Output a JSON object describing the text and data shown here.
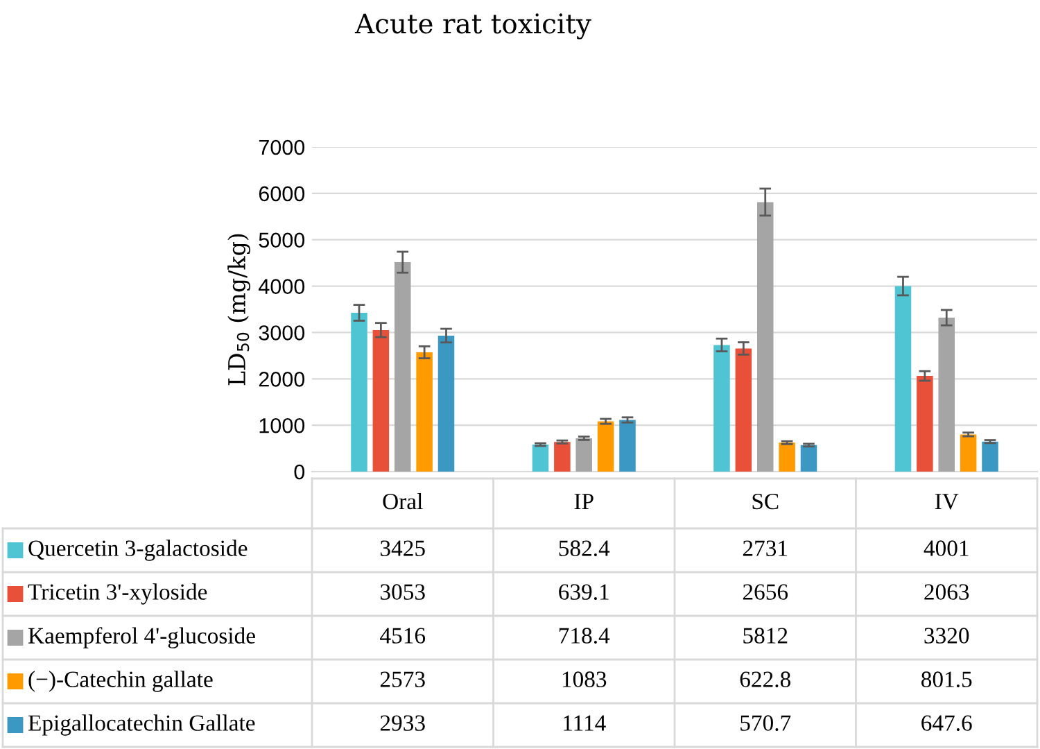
{
  "chart_data": {
    "type": "bar",
    "title": "Acute rat toxicity",
    "ylabel": "LD$_{50}$ (mg/kg)",
    "categories": [
      "Oral",
      "IP",
      "SC",
      "IV"
    ],
    "series": [
      {
        "name": "Quercetin 3-galactoside",
        "color": "#4fc5d3",
        "values": [
          3425,
          582.4,
          2731,
          4001
        ],
        "errors": [
          171,
          29,
          137,
          200
        ]
      },
      {
        "name": "Tricetin 3'-xyloside",
        "color": "#e8503a",
        "values": [
          3053,
          639.1,
          2656,
          2063
        ],
        "errors": [
          153,
          32,
          133,
          103
        ]
      },
      {
        "name": "Kaempferol 4'-glucoside",
        "color": "#a5a5a5",
        "values": [
          4516,
          718.4,
          5812,
          3320
        ],
        "errors": [
          226,
          36,
          291,
          166
        ]
      },
      {
        "name": "(−)-Catechin gallate",
        "color": "#ff9a00",
        "values": [
          2573,
          1083,
          622.8,
          801.5
        ],
        "errors": [
          129,
          54,
          31,
          40
        ]
      },
      {
        "name": "Epigallocatechin Gallate",
        "color": "#3b98c2",
        "values": [
          2933,
          1114,
          570.7,
          647.6
        ],
        "errors": [
          147,
          56,
          29,
          32
        ]
      }
    ],
    "ylim": [
      0,
      7000
    ],
    "yticks": [
      0,
      1000,
      2000,
      3000,
      4000,
      5000,
      6000,
      7000
    ],
    "grid": "y",
    "legend": "bottom",
    "data_labels": true
  }
}
